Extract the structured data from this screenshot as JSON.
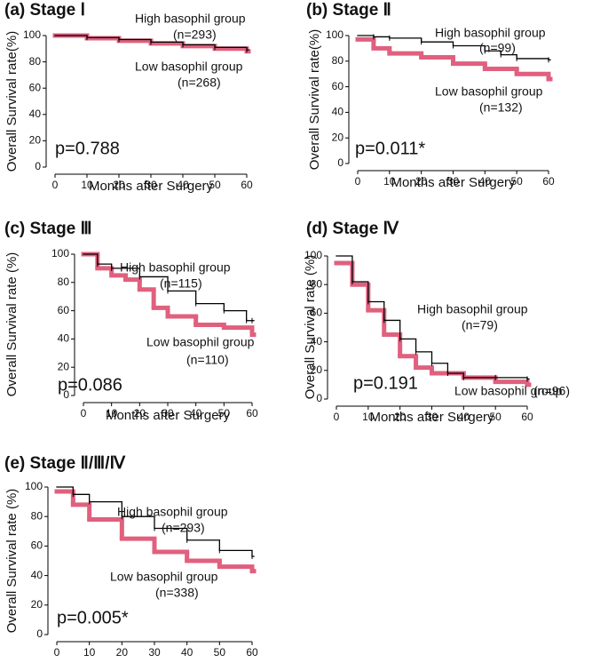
{
  "chart_data": [
    {
      "type": "line",
      "title": "(a) Stage Ⅰ",
      "x_label": "Months after Surgery",
      "y_label": "Overall Survival rate(%)",
      "p_value": "p=0.788",
      "xlim": [
        0,
        60
      ],
      "xticks": [
        0,
        10,
        20,
        30,
        40,
        50,
        60
      ],
      "ylim": [
        0,
        100
      ],
      "yticks": [
        0,
        20,
        40,
        60,
        80,
        100
      ],
      "series": [
        {
          "name": "High basophil group",
          "n_label": "(n=293)",
          "color": "#000000",
          "x": [
            0,
            10,
            20,
            30,
            40,
            50,
            60
          ],
          "values": [
            100,
            98.5,
            97,
            95,
            93,
            91,
            89
          ]
        },
        {
          "name": "Low basophil group",
          "n_label": "(n=268)",
          "color": "#e0607e",
          "x": [
            0,
            10,
            20,
            30,
            40,
            50,
            60
          ],
          "values": [
            100,
            98,
            96,
            94,
            92,
            90,
            88
          ]
        }
      ]
    },
    {
      "type": "line",
      "title": "(b) Stage Ⅱ",
      "x_label": "Months after Surgery",
      "y_label": "Overall Survival rate(%)",
      "p_value": "p=0.011*",
      "xlim": [
        0,
        60
      ],
      "xticks": [
        0,
        10,
        20,
        30,
        40,
        50,
        60
      ],
      "ylim": [
        0,
        100
      ],
      "yticks": [
        0,
        20,
        40,
        60,
        80,
        100
      ],
      "series": [
        {
          "name": "High basophil group",
          "n_label": "(n=99)",
          "color": "#000000",
          "x": [
            0,
            5,
            10,
            20,
            30,
            40,
            45,
            50,
            60
          ],
          "values": [
            100,
            99,
            98,
            95,
            92,
            88,
            85,
            82,
            81
          ]
        },
        {
          "name": "Low basophil group",
          "n_label": "(n=132)",
          "color": "#e0607e",
          "x": [
            0,
            5,
            10,
            20,
            30,
            40,
            50,
            60
          ],
          "values": [
            97,
            90,
            86,
            83,
            78,
            74,
            70,
            66
          ]
        }
      ]
    },
    {
      "type": "line",
      "title": "(c) Stage Ⅲ",
      "x_label": "Months after Surgery",
      "y_label": "Overall Survival rate (%)",
      "p_value": "p=0.086",
      "xlim": [
        0,
        60
      ],
      "xticks": [
        0,
        10,
        20,
        30,
        40,
        50,
        60
      ],
      "ylim": [
        0,
        100
      ],
      "yticks": [
        0,
        20,
        40,
        60,
        80,
        100
      ],
      "series": [
        {
          "name": "High basophil group",
          "n_label": "(n=115)",
          "color": "#000000",
          "x": [
            0,
            5,
            10,
            20,
            30,
            40,
            50,
            58,
            60
          ],
          "values": [
            100,
            93,
            90,
            84,
            74,
            65,
            60,
            53,
            53
          ]
        },
        {
          "name": "Low basophil group",
          "n_label": "(n=110)",
          "color": "#e0607e",
          "x": [
            0,
            5,
            10,
            15,
            20,
            25,
            30,
            40,
            50,
            60
          ],
          "values": [
            100,
            90,
            85,
            82,
            75,
            62,
            56,
            50,
            48,
            43
          ]
        }
      ]
    },
    {
      "type": "line",
      "title": "(d) Stage Ⅳ",
      "x_label": "Months after Surgery",
      "y_label": "Overall Survival rate (%)",
      "p_value": "p=0.191",
      "xlim": [
        0,
        60
      ],
      "xticks": [
        0,
        10,
        20,
        30,
        40,
        50,
        60
      ],
      "ylim": [
        0,
        100
      ],
      "yticks": [
        0,
        20,
        40,
        60,
        80,
        100
      ],
      "series": [
        {
          "name": "High basophil group",
          "n_label": "(n=79)",
          "color": "#000000",
          "x": [
            0,
            5,
            10,
            15,
            20,
            25,
            30,
            35,
            40,
            50,
            60
          ],
          "values": [
            100,
            82,
            68,
            55,
            42,
            33,
            25,
            18,
            15,
            15,
            14
          ]
        },
        {
          "name": "Low basophil group",
          "n_label": "(n=96)",
          "color": "#e0607e",
          "x": [
            0,
            5,
            10,
            15,
            20,
            25,
            30,
            40,
            50,
            60
          ],
          "values": [
            95,
            80,
            62,
            45,
            30,
            22,
            18,
            15,
            12,
            10
          ]
        }
      ]
    },
    {
      "type": "line",
      "title": "(e) Stage Ⅱ/Ⅲ/Ⅳ",
      "y_label": "Overall Survival rate (%)",
      "p_value": "p=0.005*",
      "xlim": [
        0,
        60
      ],
      "xticks": [
        0,
        10,
        20,
        30,
        40,
        50,
        60
      ],
      "ylim": [
        0,
        100
      ],
      "yticks": [
        0,
        20,
        40,
        60,
        80,
        100
      ],
      "series": [
        {
          "name": "High basophil group",
          "n_label": "(n=293)",
          "color": "#000000",
          "x": [
            0,
            5,
            10,
            20,
            30,
            40,
            50,
            60
          ],
          "values": [
            100,
            95,
            90,
            80,
            72,
            64,
            57,
            53
          ]
        },
        {
          "name": "Low basophil group",
          "n_label": "(n=338)",
          "color": "#e0607e",
          "x": [
            0,
            5,
            10,
            20,
            30,
            40,
            50,
            60
          ],
          "values": [
            97,
            88,
            78,
            65,
            56,
            50,
            46,
            43
          ]
        }
      ]
    }
  ]
}
